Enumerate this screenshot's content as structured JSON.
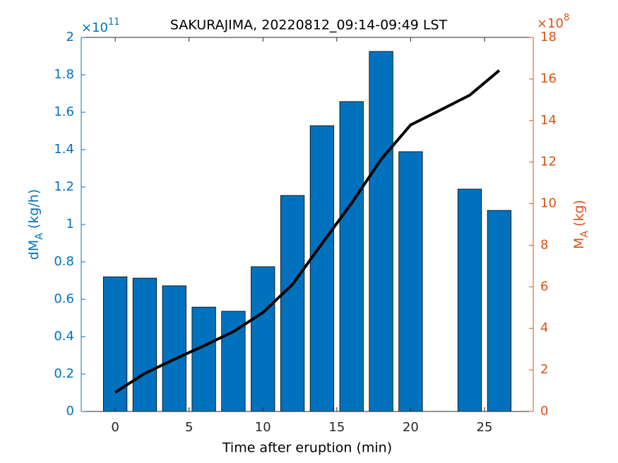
{
  "chart_data": {
    "type": "bar_line",
    "title": "SAKURAJIMA, 20220812_09:14-09:49 LST",
    "x_label": "Time after eruption (min)",
    "y_label": {
      "main": "dM",
      "sub": "A",
      "unit": "(kg/h)"
    },
    "y2_label": {
      "main": "M",
      "sub": "A",
      "unit": "(kg)"
    },
    "y_multiplier": {
      "base": "×10",
      "exp": "11"
    },
    "y2_multiplier": {
      "base": "×10",
      "exp": "8"
    },
    "x": [
      0,
      2,
      4,
      6,
      8,
      10,
      12,
      14,
      16,
      18,
      20,
      22,
      24,
      26
    ],
    "series": [
      {
        "name": "dMA",
        "type": "bar",
        "color": "#0072BD",
        "axis": "y",
        "values": [
          0.72,
          0.713,
          0.672,
          0.558,
          0.536,
          0.774,
          1.155,
          1.528,
          1.657,
          1.925,
          1.389,
          null,
          1.189,
          1.075
        ]
      },
      {
        "name": "MA",
        "type": "line",
        "color": "#000000",
        "axis": "y2",
        "values": [
          0.92,
          1.83,
          2.51,
          3.16,
          3.84,
          4.76,
          6.11,
          8.08,
          10.02,
          12.13,
          13.79,
          14.5,
          15.22,
          16.41
        ]
      }
    ],
    "xlim": [
      -2.3,
      28.3
    ],
    "xticks": [
      0,
      5,
      10,
      15,
      20,
      25
    ],
    "ylim": [
      0,
      2
    ],
    "yticks": [
      0,
      0.2,
      0.4,
      0.6,
      0.8,
      1,
      1.2,
      1.4,
      1.6,
      1.8,
      2
    ],
    "y2lim": [
      0,
      18
    ],
    "y2ticks": [
      0,
      2,
      4,
      6,
      8,
      10,
      12,
      14,
      16,
      18
    ],
    "y_color": "#0072BD",
    "y2_color": "#D95319"
  }
}
